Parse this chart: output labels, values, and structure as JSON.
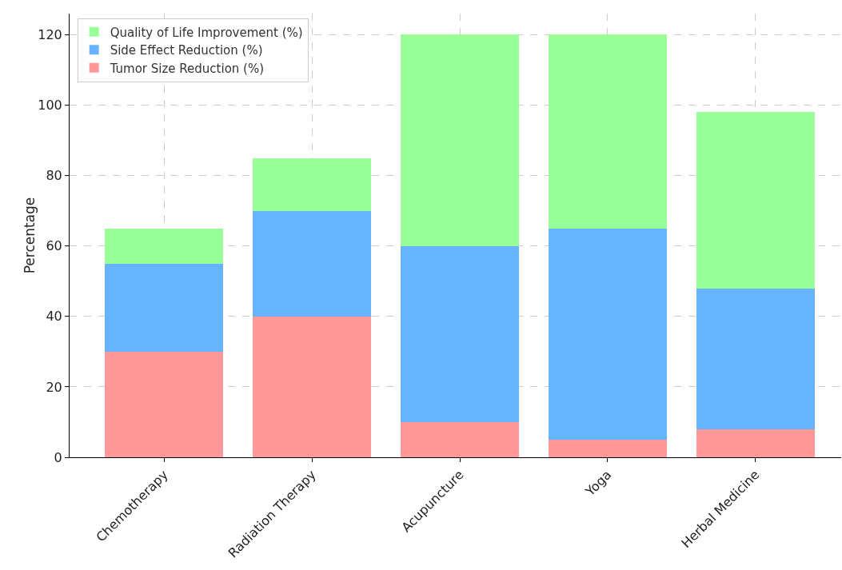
{
  "chart_data": {
    "type": "bar",
    "stacked": true,
    "ylabel": "Percentage",
    "categories": [
      "Chemotherapy",
      "Radiation Therapy",
      "Acupuncture",
      "Yoga",
      "Herbal Medicine"
    ],
    "series": [
      {
        "name": "Tumor Size Reduction (%)",
        "color": "#ff9999",
        "values": [
          30,
          40,
          10,
          5,
          8
        ]
      },
      {
        "name": "Side Effect Reduction (%)",
        "color": "#66b3ff",
        "values": [
          25,
          30,
          50,
          60,
          40
        ]
      },
      {
        "name": "Quality of Life Improvement (%)",
        "color": "#99ff99",
        "values": [
          10,
          15,
          60,
          55,
          50
        ]
      }
    ],
    "ylim": [
      0,
      126
    ],
    "yticks": [
      0,
      20,
      40,
      60,
      80,
      100,
      120
    ],
    "grid": true,
    "legend": "top left"
  }
}
